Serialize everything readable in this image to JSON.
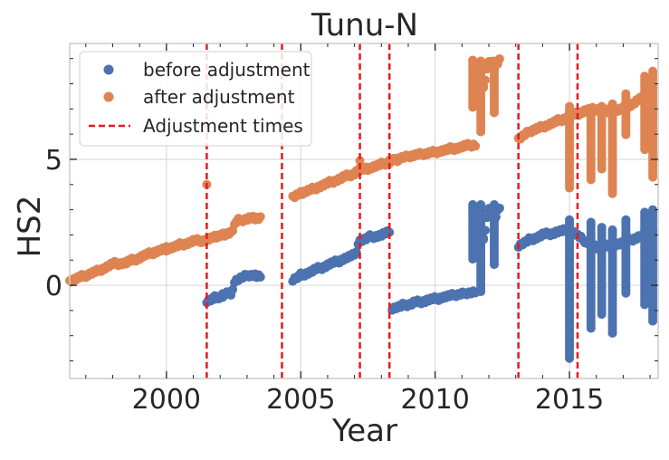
{
  "chart_data": {
    "type": "scatter",
    "title": "Tunu-N",
    "xlabel": "Year",
    "ylabel": "HS2",
    "xlim": [
      1996.4,
      2018.3
    ],
    "ylim": [
      -3.7,
      9.6
    ],
    "xticks": [
      2000,
      2005,
      2010,
      2015
    ],
    "xtick_labels": [
      "2000",
      "2005",
      "2010",
      "2015"
    ],
    "yticks": [
      0,
      5
    ],
    "ytick_labels": [
      "0",
      "5"
    ],
    "grid": true,
    "legend_position": "top-left",
    "legend": [
      {
        "label": "before adjustment",
        "color": "#4c72b0",
        "marker": "dot"
      },
      {
        "label": "after adjustment",
        "color": "#dd8452",
        "marker": "dot"
      },
      {
        "label": "Adjustment times",
        "color": "#e8191c",
        "marker": "dashed-line"
      }
    ],
    "adjustment_times": [
      2001.5,
      2004.3,
      2007.2,
      2008.3,
      2013.1,
      2015.3
    ],
    "series": [
      {
        "name": "before adjustment",
        "color": "#4c72b0",
        "segments": [
          {
            "x": [
              2001.5,
              2001.8,
              2002.1,
              2002.4,
              2002.6,
              2003.0,
              2003.3,
              2003.5
            ],
            "y": [
              -0.6,
              -0.5,
              -0.4,
              -0.3,
              0.2,
              0.4,
              0.4,
              0.4
            ]
          },
          {
            "x": [
              2004.7,
              2005.0,
              2005.5,
              2006.0,
              2006.5,
              2007.0,
              2007.2,
              2007.5,
              2008.0,
              2008.3
            ],
            "y": [
              0.25,
              0.4,
              0.6,
              0.8,
              1.0,
              1.2,
              1.8,
              1.9,
              2.0,
              2.1
            ]
          },
          {
            "x": [
              2008.4,
              2008.8,
              2009.2,
              2009.7,
              2010.2,
              2010.7,
              2011.1,
              2011.5
            ],
            "y": [
              -0.9,
              -0.8,
              -0.7,
              -0.6,
              -0.5,
              -0.4,
              -0.3,
              -0.25
            ]
          },
          {
            "x": [
              2011.4,
              2011.6,
              2011.8,
              2012.0,
              2012.2,
              2012.4
            ],
            "y": [
              3.1,
              2.7,
              1.8,
              3.0,
              2.6,
              3.1
            ]
          },
          {
            "x": [
              2013.1,
              2013.5,
              2014.0,
              2014.5,
              2015.0,
              2015.5,
              2016.0,
              2016.5,
              2017.0,
              2017.5,
              2018.0
            ],
            "y": [
              1.6,
              1.8,
              2.0,
              2.1,
              2.2,
              1.8,
              1.5,
              1.6,
              1.7,
              1.9,
              2.0
            ]
          }
        ],
        "spikes": [
          {
            "x": 2011.4,
            "low": 1.0,
            "high": 3.2
          },
          {
            "x": 2011.7,
            "low": -0.3,
            "high": 3.2
          },
          {
            "x": 2012.2,
            "low": 0.8,
            "high": 3.2
          },
          {
            "x": 2015.0,
            "low": -3.0,
            "high": 2.6
          },
          {
            "x": 2015.8,
            "low": -1.8,
            "high": 2.5
          },
          {
            "x": 2016.2,
            "low": -1.2,
            "high": 2.3
          },
          {
            "x": 2016.6,
            "low": -2.0,
            "high": 2.2
          },
          {
            "x": 2017.1,
            "low": -0.4,
            "high": 2.6
          },
          {
            "x": 2017.8,
            "low": -0.8,
            "high": 2.9
          },
          {
            "x": 2018.1,
            "low": -1.5,
            "high": 3.0
          }
        ]
      },
      {
        "name": "after adjustment",
        "color": "#dd8452",
        "segments": [
          {
            "x": [
              1996.4,
              1997.0,
              1997.5,
              1998.0,
              1998.5,
              1999.0,
              1999.5,
              2000.0,
              2000.5,
              2001.0,
              2001.5,
              2001.8,
              2002.1,
              2002.4,
              2002.6,
              2003.0,
              2003.3,
              2003.5
            ],
            "y": [
              0.15,
              0.4,
              0.6,
              0.85,
              0.9,
              1.1,
              1.3,
              1.45,
              1.6,
              1.75,
              1.8,
              1.9,
              2.0,
              2.1,
              2.55,
              2.65,
              2.65,
              2.65
            ]
          },
          {
            "x": [
              2004.7,
              2005.0,
              2005.5,
              2006.0,
              2006.5,
              2007.0,
              2007.2,
              2007.5,
              2008.0,
              2008.3,
              2008.6,
              2009.0,
              2009.5,
              2010.0,
              2010.5,
              2011.0,
              2011.5
            ],
            "y": [
              3.5,
              3.65,
              3.85,
              4.05,
              4.25,
              4.45,
              4.6,
              4.65,
              4.8,
              4.9,
              5.0,
              5.1,
              5.2,
              5.3,
              5.4,
              5.5,
              5.6
            ]
          },
          {
            "x": [
              2011.4,
              2011.6,
              2011.8,
              2012.0,
              2012.2,
              2012.4
            ],
            "y": [
              8.9,
              8.7,
              7.9,
              8.9,
              8.6,
              8.9
            ]
          },
          {
            "x": [
              2013.1,
              2013.5,
              2014.0,
              2014.5,
              2015.0,
              2015.5,
              2016.0,
              2016.5,
              2017.0,
              2017.5,
              2018.0
            ],
            "y": [
              5.8,
              6.1,
              6.3,
              6.5,
              6.7,
              6.9,
              7.0,
              6.9,
              7.0,
              7.3,
              7.6
            ]
          }
        ],
        "spikes": [
          {
            "x": 2011.4,
            "low": 7.0,
            "high": 8.9
          },
          {
            "x": 2011.7,
            "low": 6.0,
            "high": 8.9
          },
          {
            "x": 2012.2,
            "low": 6.8,
            "high": 8.9
          },
          {
            "x": 2015.0,
            "low": 3.8,
            "high": 7.1
          },
          {
            "x": 2015.8,
            "low": 4.1,
            "high": 7.0
          },
          {
            "x": 2016.2,
            "low": 4.6,
            "high": 7.1
          },
          {
            "x": 2016.6,
            "low": 3.6,
            "high": 7.2
          },
          {
            "x": 2017.1,
            "low": 5.9,
            "high": 7.6
          },
          {
            "x": 2017.8,
            "low": 5.3,
            "high": 8.3
          },
          {
            "x": 2018.1,
            "low": 4.2,
            "high": 8.5
          }
        ],
        "outliers": [
          {
            "x": 2001.5,
            "y": 4.0
          },
          {
            "x": 2007.2,
            "y": 4.95
          }
        ]
      }
    ]
  }
}
